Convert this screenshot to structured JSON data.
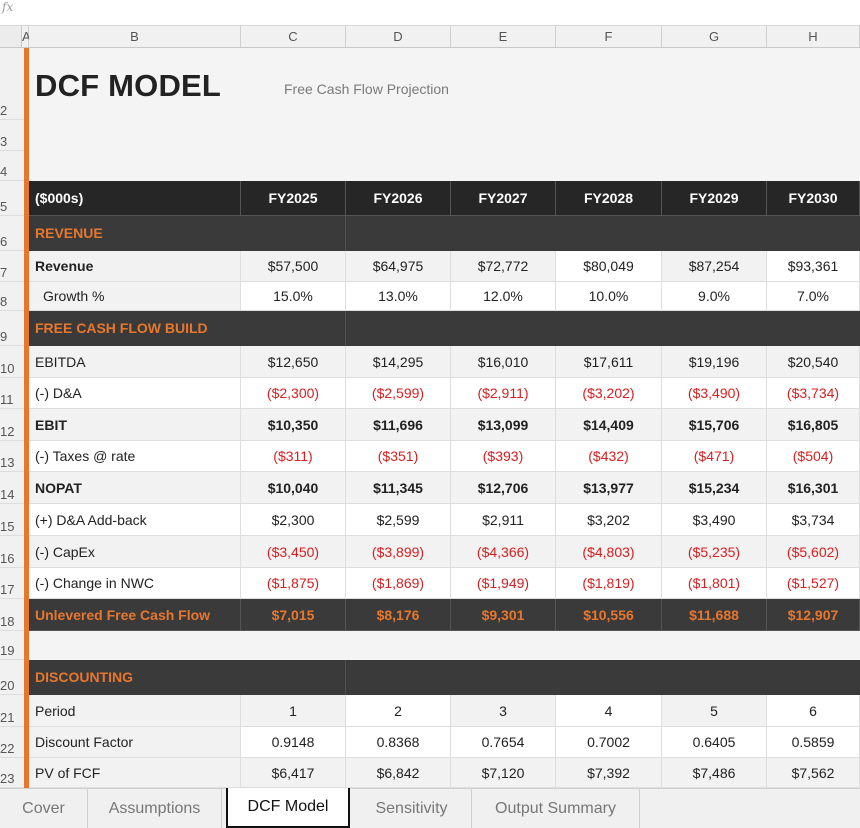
{
  "formula_bar": {
    "label": "fx"
  },
  "columns": [
    "A",
    "B",
    "C",
    "D",
    "E",
    "F",
    "G",
    "H"
  ],
  "row_numbers": [
    "2",
    "3",
    "4",
    "5",
    "6",
    "7",
    "8",
    "9",
    "10",
    "11",
    "12",
    "13",
    "14",
    "15",
    "16",
    "17",
    "18",
    "19",
    "20",
    "21",
    "22",
    "23"
  ],
  "header": {
    "title": "DCF MODEL",
    "subtitle": "Free Cash Flow Projection"
  },
  "table_header": {
    "label": "($000s)",
    "years": [
      "FY2025",
      "FY2026",
      "FY2027",
      "FY2028",
      "FY2029",
      "FY2030"
    ]
  },
  "sections": {
    "revenue": "REVENUE",
    "fcf_build": "FREE CASH FLOW BUILD",
    "discounting": "DISCOUNTING"
  },
  "rows": {
    "revenue": {
      "label": "Revenue",
      "values": [
        "$57,500",
        "$64,975",
        "$72,772",
        "$80,049",
        "$87,254",
        "$93,361"
      ]
    },
    "growth": {
      "label": "Growth %",
      "values": [
        "15.0%",
        "13.0%",
        "12.0%",
        "10.0%",
        "9.0%",
        "7.0%"
      ]
    },
    "ebitda": {
      "label": "EBITDA",
      "values": [
        "$12,650",
        "$14,295",
        "$16,010",
        "$17,611",
        "$19,196",
        "$20,540"
      ]
    },
    "da": {
      "label": "(-) D&A",
      "values": [
        "($2,300)",
        "($2,599)",
        "($2,911)",
        "($3,202)",
        "($3,490)",
        "($3,734)"
      ]
    },
    "ebit": {
      "label": "EBIT",
      "values": [
        "$10,350",
        "$11,696",
        "$13,099",
        "$14,409",
        "$15,706",
        "$16,805"
      ]
    },
    "taxes": {
      "label": "(-) Taxes @ rate",
      "values": [
        "($311)",
        "($351)",
        "($393)",
        "($432)",
        "($471)",
        "($504)"
      ]
    },
    "nopat": {
      "label": "NOPAT",
      "values": [
        "$10,040",
        "$11,345",
        "$12,706",
        "$13,977",
        "$15,234",
        "$16,301"
      ]
    },
    "da_addback": {
      "label": "(+) D&A Add-back",
      "values": [
        "$2,300",
        "$2,599",
        "$2,911",
        "$3,202",
        "$3,490",
        "$3,734"
      ]
    },
    "capex": {
      "label": "(-) CapEx",
      "values": [
        "($3,450)",
        "($3,899)",
        "($4,366)",
        "($4,803)",
        "($5,235)",
        "($5,602)"
      ]
    },
    "nwc": {
      "label": "(-) Change in NWC",
      "values": [
        "($1,875)",
        "($1,869)",
        "($1,949)",
        "($1,819)",
        "($1,801)",
        "($1,527)"
      ]
    },
    "ufcf": {
      "label": "Unlevered Free Cash Flow",
      "values": [
        "$7,015",
        "$8,176",
        "$9,301",
        "$10,556",
        "$11,688",
        "$12,907"
      ]
    },
    "period": {
      "label": "Period",
      "values": [
        "1",
        "2",
        "3",
        "4",
        "5",
        "6"
      ]
    },
    "discount_factor": {
      "label": "Discount Factor",
      "values": [
        "0.9148",
        "0.8368",
        "0.7654",
        "0.7002",
        "0.6405",
        "0.5859"
      ]
    },
    "pv_fcf": {
      "label": "PV of FCF",
      "values": [
        "$6,417",
        "$6,842",
        "$7,120",
        "$7,392",
        "$7,486",
        "$7,562"
      ]
    }
  },
  "tabs": [
    "Cover",
    "Assumptions",
    "DCF Model",
    "Sensitivity",
    "Output Summary"
  ],
  "active_tab": "DCF Model",
  "colors": {
    "accent": "#e8772e",
    "dark": "#262626",
    "section": "#3a3a3a",
    "negative": "#d81e1e"
  }
}
